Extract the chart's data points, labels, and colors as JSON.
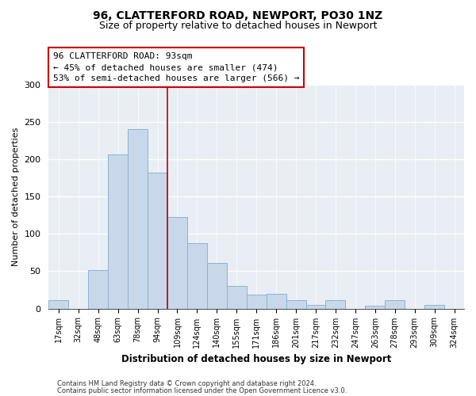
{
  "title": "96, CLATTERFORD ROAD, NEWPORT, PO30 1NZ",
  "subtitle": "Size of property relative to detached houses in Newport",
  "xlabel": "Distribution of detached houses by size in Newport",
  "ylabel": "Number of detached properties",
  "bar_color": "#c8d8ea",
  "bar_edge_color": "#8ab4d0",
  "categories": [
    "17sqm",
    "32sqm",
    "48sqm",
    "63sqm",
    "78sqm",
    "94sqm",
    "109sqm",
    "124sqm",
    "140sqm",
    "155sqm",
    "171sqm",
    "186sqm",
    "201sqm",
    "217sqm",
    "232sqm",
    "247sqm",
    "263sqm",
    "278sqm",
    "293sqm",
    "309sqm",
    "324sqm"
  ],
  "values": [
    11,
    0,
    52,
    206,
    240,
    182,
    123,
    88,
    61,
    30,
    19,
    20,
    11,
    5,
    11,
    0,
    4,
    11,
    0,
    5,
    0
  ],
  "vline_x": 5.5,
  "vline_color": "#bb0000",
  "annotation_title": "96 CLATTERFORD ROAD: 93sqm",
  "annotation_line1": "← 45% of detached houses are smaller (474)",
  "annotation_line2": "53% of semi-detached houses are larger (566) →",
  "annotation_box_color": "#ffffff",
  "annotation_box_edge": "#cc0000",
  "ylim": [
    0,
    300
  ],
  "yticks": [
    0,
    50,
    100,
    150,
    200,
    250,
    300
  ],
  "footer1": "Contains HM Land Registry data © Crown copyright and database right 2024.",
  "footer2": "Contains public sector information licensed under the Open Government Licence v3.0.",
  "background_color": "#ffffff",
  "plot_bg_color": "#e8eef4"
}
